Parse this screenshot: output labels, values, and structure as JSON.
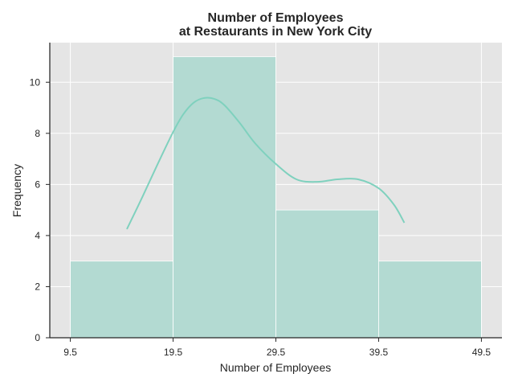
{
  "chart_data": {
    "type": "histogram",
    "title": [
      "Number of Employees",
      "at Restaurants in New York City"
    ],
    "xlabel": "Number of Employees",
    "ylabel": "Frequency",
    "bins": [
      {
        "start": 9.5,
        "end": 19.5,
        "count": 3
      },
      {
        "start": 19.5,
        "end": 29.5,
        "count": 11
      },
      {
        "start": 29.5,
        "end": 39.5,
        "count": 5
      },
      {
        "start": 39.5,
        "end": 49.5,
        "count": 3
      }
    ],
    "xticks": [
      9.5,
      19.5,
      29.5,
      39.5,
      49.5
    ],
    "xtick_labels": [
      "9.5",
      "19.5",
      "29.5",
      "39.5",
      "49.5"
    ],
    "yticks": [
      0,
      2,
      4,
      6,
      8,
      10
    ],
    "ytick_labels": [
      "0",
      "2",
      "4",
      "6",
      "8",
      "10"
    ],
    "xlim": [
      7.5,
      51.5
    ],
    "ylim": [
      0,
      11.55
    ],
    "kde_curve": {
      "x": [
        15,
        16.5,
        18,
        19.5,
        20.5,
        21.5,
        22.5,
        23.5,
        24.5,
        26,
        27.5,
        29.5,
        31.5,
        33.5,
        35.5,
        37.5,
        39.5,
        41,
        42
      ],
      "y": [
        4.25,
        5.5,
        6.8,
        8.05,
        8.75,
        9.2,
        9.38,
        9.35,
        9.1,
        8.4,
        7.6,
        6.8,
        6.2,
        6.1,
        6.2,
        6.2,
        5.85,
        5.2,
        4.5
      ]
    },
    "grid": true,
    "colors": {
      "bar_fill": "#b3dad2",
      "bar_edge": "#ffffff",
      "kde_line": "#7fd1be",
      "plot_background": "#e5e5e5",
      "grid": "#ffffff"
    }
  }
}
